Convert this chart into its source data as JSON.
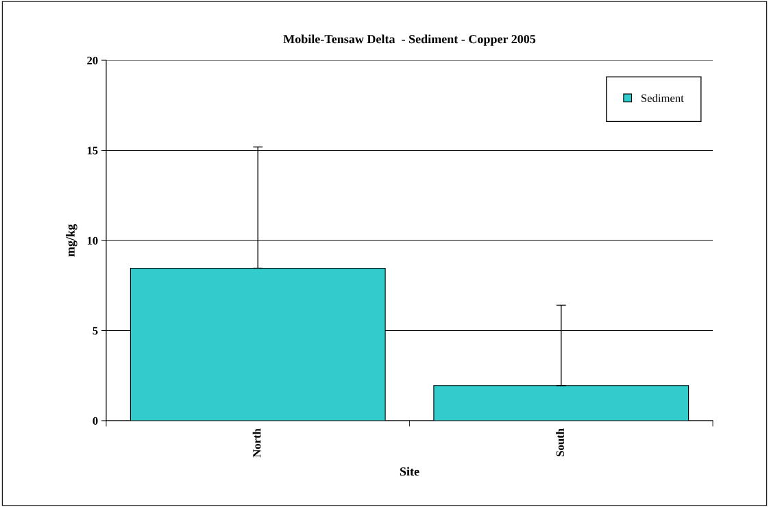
{
  "chart_data": {
    "type": "bar",
    "title": "Mobile-Tensaw Delta  - Sediment - Copper 2005",
    "xlabel": "Site",
    "ylabel": "mg/kg",
    "categories": [
      "North",
      "South"
    ],
    "series": [
      {
        "name": "Sediment",
        "color": "#33cccc",
        "values": [
          8.46,
          1.95
        ],
        "errors": [
          [
            8.46,
            15.19
          ],
          [
            1.95,
            6.41
          ]
        ]
      }
    ],
    "ylim": [
      0,
      20
    ],
    "yticks": [
      0,
      5,
      10,
      15,
      20
    ],
    "grid": "y",
    "legend": "top right"
  }
}
